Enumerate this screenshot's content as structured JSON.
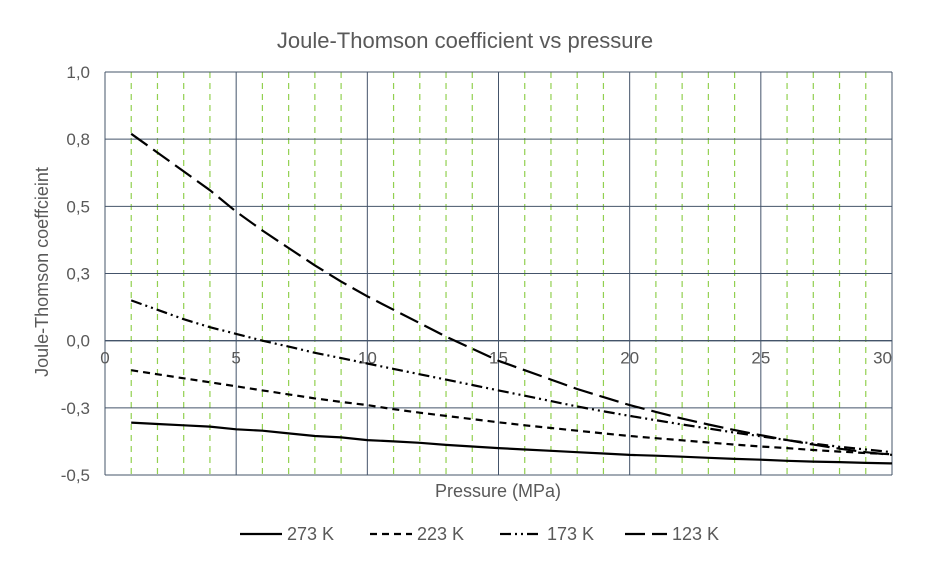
{
  "chart_data": {
    "type": "line",
    "title": "Joule-Thomson coefficient vs pressure",
    "xlabel": "Pressure (MPa)",
    "ylabel": "Joule-Thomson coeffcieint",
    "xlim": [
      0,
      30
    ],
    "ylim": [
      -0.5,
      1.0
    ],
    "x_ticks": [
      0,
      5,
      10,
      15,
      20,
      25,
      30
    ],
    "x_tick_labels": [
      "0",
      "5",
      "10",
      "15",
      "20",
      "25",
      "30"
    ],
    "y_ticks": [
      -0.5,
      -0.25,
      0,
      0.25,
      0.5,
      0.75,
      1.0
    ],
    "y_tick_labels": [
      "-0,5",
      "-0,3",
      "0,0",
      "0,3",
      "0,5",
      "0,8",
      "1,0"
    ],
    "grid": {
      "major_x": true,
      "major_y": true,
      "major_color": "#44546a",
      "minor_x_every": 1,
      "minor_color": "#92d050"
    },
    "legend_position": "bottom",
    "x": [
      1,
      2,
      3,
      4,
      5,
      6,
      7,
      8,
      9,
      10,
      11,
      12,
      13,
      14,
      15,
      16,
      17,
      18,
      19,
      20,
      21,
      22,
      23,
      24,
      25,
      26,
      27,
      28,
      29,
      30
    ],
    "series": [
      {
        "name": "273 K",
        "dash": "solid",
        "color": "#000000",
        "values": [
          -0.305,
          -0.31,
          -0.315,
          -0.32,
          -0.33,
          -0.335,
          -0.345,
          -0.355,
          -0.36,
          -0.37,
          -0.375,
          -0.38,
          -0.388,
          -0.394,
          -0.4,
          -0.405,
          -0.41,
          -0.415,
          -0.42,
          -0.425,
          -0.428,
          -0.432,
          -0.436,
          -0.44,
          -0.443,
          -0.447,
          -0.45,
          -0.452,
          -0.455,
          -0.457
        ]
      },
      {
        "name": "223 K",
        "dash": "short",
        "color": "#000000",
        "values": [
          -0.11,
          -0.125,
          -0.14,
          -0.155,
          -0.17,
          -0.185,
          -0.2,
          -0.215,
          -0.228,
          -0.24,
          -0.255,
          -0.268,
          -0.28,
          -0.292,
          -0.304,
          -0.315,
          -0.325,
          -0.335,
          -0.345,
          -0.355,
          -0.363,
          -0.371,
          -0.379,
          -0.387,
          -0.394,
          -0.4,
          -0.407,
          -0.413,
          -0.418,
          -0.423
        ]
      },
      {
        "name": "173 K",
        "dash": "dashdotdot",
        "color": "#000000",
        "values": [
          0.15,
          0.115,
          0.08,
          0.05,
          0.025,
          0.0,
          -0.022,
          -0.045,
          -0.065,
          -0.085,
          -0.105,
          -0.125,
          -0.145,
          -0.165,
          -0.185,
          -0.205,
          -0.225,
          -0.245,
          -0.263,
          -0.28,
          -0.296,
          -0.312,
          -0.327,
          -0.342,
          -0.356,
          -0.37,
          -0.383,
          -0.395,
          -0.405,
          -0.415
        ]
      },
      {
        "name": "123 K",
        "dash": "long",
        "color": "#000000",
        "values": [
          0.77,
          0.7,
          0.63,
          0.56,
          0.48,
          0.41,
          0.345,
          0.28,
          0.22,
          0.165,
          0.115,
          0.065,
          0.015,
          -0.03,
          -0.075,
          -0.11,
          -0.145,
          -0.18,
          -0.21,
          -0.24,
          -0.265,
          -0.29,
          -0.312,
          -0.333,
          -0.352,
          -0.37,
          -0.387,
          -0.402,
          -0.415,
          -0.425
        ]
      }
    ]
  }
}
